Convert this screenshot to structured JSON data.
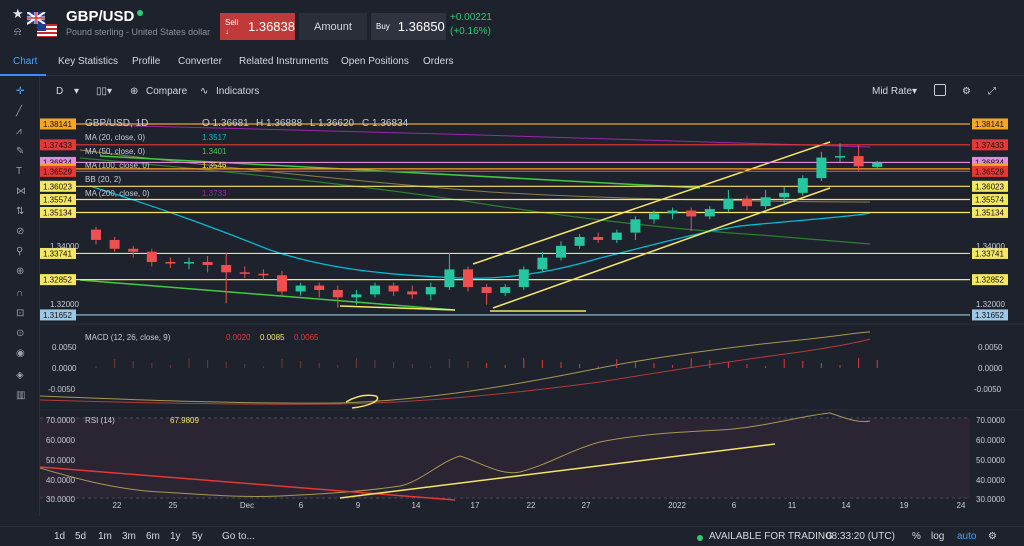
{
  "header": {
    "symbol": "GBP/USD",
    "subtitle": "Pound sterling - United States dollar",
    "sell_label": "Sell ↓",
    "sell_price": "1.36838",
    "amount_label": "Amount",
    "buy_label": "Buy",
    "buy_price": "1.36850",
    "change_abs": "+0.00221",
    "change_pct": "(+0.16%)"
  },
  "tabs": [
    "Chart",
    "Key Statistics",
    "Profile",
    "Converter",
    "Related Instruments",
    "Open Positions",
    "Orders"
  ],
  "toolbar": {
    "interval": "D",
    "compare": "Compare",
    "indicators": "Indicators",
    "rate_mode": "Mid Rate"
  },
  "legend": {
    "ohlc": "GBP/USD, 1D",
    "o": "O 1.36681",
    "h": "H 1.36888",
    "l": "L 1.36620",
    "c": "C 1.36834",
    "ma20": "MA (20, close, 0)",
    "ma20_val": "1.3517",
    "ma50": "MA (50, close, 0)",
    "ma50_val": "1.3401",
    "ma100": "MA (100, close, 0)",
    "ma100_val": "1.3546",
    "bb": "BB (20, 2)",
    "ma200": "MA (200, close, 0)",
    "ma200_val": "1.3733",
    "macd": "MACD (12, 26, close, 9)",
    "macd_v1": "0.0020",
    "macd_v2": "0.0085",
    "macd_v3": "0.0065",
    "rsi": "RSI (14)",
    "rsi_val": "67.9809"
  },
  "price_levels": [
    {
      "label": "1.38141",
      "color": "#f5a623",
      "value": 1.38141
    },
    {
      "label": "1.37433",
      "color": "#e53935",
      "value": 1.37433
    },
    {
      "label": "1.36834",
      "color": "#e28bd9",
      "value": 1.36834
    },
    {
      "label": "1.36614",
      "color": "#f5a623",
      "value": 1.36614
    },
    {
      "label": "1.36529",
      "color": "#e53935",
      "value": 1.36529
    },
    {
      "label": "1.36023",
      "color": "#f5e663",
      "value": 1.36023
    },
    {
      "label": "1.35574",
      "color": "#f5e663",
      "value": 1.35574
    },
    {
      "label": "1.35134",
      "color": "#f5e663",
      "value": 1.35134
    },
    {
      "label": "1.33741",
      "color": "#f5e663",
      "value": 1.33741
    },
    {
      "label": "1.32852",
      "color": "#f5e663",
      "value": 1.32852
    },
    {
      "label": "1.31652",
      "color": "#9ec9e6",
      "value": 1.31652
    }
  ],
  "price_ticks": [
    "1.34000",
    "1.32000"
  ],
  "macd_ticks": [
    "0.0050",
    "0.0000",
    "-0.0050"
  ],
  "rsi_ticks": [
    "70.0000",
    "60.0000",
    "50.0000",
    "40.0000",
    "30.0000"
  ],
  "x_ticks": [
    "22",
    "25",
    "Dec",
    "6",
    "9",
    "14",
    "17",
    "22",
    "27",
    "2022",
    "6",
    "11",
    "14",
    "19",
    "24"
  ],
  "candles": [
    {
      "o": 1.3455,
      "c": 1.342,
      "h": 1.3465,
      "l": 1.3405
    },
    {
      "o": 1.342,
      "c": 1.339,
      "h": 1.343,
      "l": 1.338
    },
    {
      "o": 1.339,
      "c": 1.338,
      "h": 1.34,
      "l": 1.336
    },
    {
      "o": 1.338,
      "c": 1.3345,
      "h": 1.339,
      "l": 1.333
    },
    {
      "o": 1.3345,
      "c": 1.334,
      "h": 1.336,
      "l": 1.3325
    },
    {
      "o": 1.334,
      "c": 1.3345,
      "h": 1.336,
      "l": 1.332
    },
    {
      "o": 1.3345,
      "c": 1.3335,
      "h": 1.3365,
      "l": 1.331
    },
    {
      "o": 1.3335,
      "c": 1.331,
      "h": 1.3375,
      "l": 1.3205
    },
    {
      "o": 1.331,
      "c": 1.3305,
      "h": 1.333,
      "l": 1.329
    },
    {
      "o": 1.3305,
      "c": 1.33,
      "h": 1.332,
      "l": 1.3285
    },
    {
      "o": 1.33,
      "c": 1.3245,
      "h": 1.3315,
      "l": 1.323
    },
    {
      "o": 1.3245,
      "c": 1.3265,
      "h": 1.3275,
      "l": 1.323
    },
    {
      "o": 1.3265,
      "c": 1.325,
      "h": 1.3275,
      "l": 1.3225
    },
    {
      "o": 1.325,
      "c": 1.3225,
      "h": 1.3265,
      "l": 1.319
    },
    {
      "o": 1.3225,
      "c": 1.3235,
      "h": 1.325,
      "l": 1.32
    },
    {
      "o": 1.3235,
      "c": 1.3265,
      "h": 1.3275,
      "l": 1.3225
    },
    {
      "o": 1.3265,
      "c": 1.3245,
      "h": 1.3275,
      "l": 1.323
    },
    {
      "o": 1.3245,
      "c": 1.3235,
      "h": 1.3265,
      "l": 1.322
    },
    {
      "o": 1.3235,
      "c": 1.326,
      "h": 1.3275,
      "l": 1.3215
    },
    {
      "o": 1.326,
      "c": 1.332,
      "h": 1.3375,
      "l": 1.325
    },
    {
      "o": 1.332,
      "c": 1.326,
      "h": 1.333,
      "l": 1.3245
    },
    {
      "o": 1.326,
      "c": 1.324,
      "h": 1.327,
      "l": 1.32
    },
    {
      "o": 1.324,
      "c": 1.326,
      "h": 1.327,
      "l": 1.323
    },
    {
      "o": 1.326,
      "c": 1.332,
      "h": 1.333,
      "l": 1.325
    },
    {
      "o": 1.332,
      "c": 1.336,
      "h": 1.338,
      "l": 1.331
    },
    {
      "o": 1.336,
      "c": 1.34,
      "h": 1.3415,
      "l": 1.335
    },
    {
      "o": 1.34,
      "c": 1.343,
      "h": 1.344,
      "l": 1.339
    },
    {
      "o": 1.343,
      "c": 1.342,
      "h": 1.3445,
      "l": 1.341
    },
    {
      "o": 1.342,
      "c": 1.3445,
      "h": 1.3455,
      "l": 1.341
    },
    {
      "o": 1.3445,
      "c": 1.349,
      "h": 1.35,
      "l": 1.342
    },
    {
      "o": 1.349,
      "c": 1.351,
      "h": 1.352,
      "l": 1.3475
    },
    {
      "o": 1.351,
      "c": 1.352,
      "h": 1.353,
      "l": 1.349
    },
    {
      "o": 1.352,
      "c": 1.35,
      "h": 1.353,
      "l": 1.345
    },
    {
      "o": 1.35,
      "c": 1.3525,
      "h": 1.3535,
      "l": 1.349
    },
    {
      "o": 1.3525,
      "c": 1.356,
      "h": 1.359,
      "l": 1.3515
    },
    {
      "o": 1.356,
      "c": 1.3535,
      "h": 1.357,
      "l": 1.352
    },
    {
      "o": 1.3535,
      "c": 1.3565,
      "h": 1.359,
      "l": 1.3525
    },
    {
      "o": 1.3565,
      "c": 1.358,
      "h": 1.36,
      "l": 1.3545
    },
    {
      "o": 1.358,
      "c": 1.363,
      "h": 1.364,
      "l": 1.357
    },
    {
      "o": 1.363,
      "c": 1.37,
      "h": 1.372,
      "l": 1.362
    },
    {
      "o": 1.37,
      "c": 1.3705,
      "h": 1.3748,
      "l": 1.3685
    },
    {
      "o": 1.3705,
      "c": 1.367,
      "h": 1.3743,
      "l": 1.3655
    },
    {
      "o": 1.3668,
      "c": 1.3683,
      "h": 1.3689,
      "l": 1.3662
    }
  ],
  "bottombar": {
    "ranges": [
      "1d",
      "5d",
      "1m",
      "3m",
      "6m",
      "1y",
      "5y"
    ],
    "goto": "Go to...",
    "availability": "AVAILABLE FOR TRADING",
    "time": "08:33:20 (UTC)",
    "opts": [
      "%",
      "log",
      "auto"
    ]
  }
}
